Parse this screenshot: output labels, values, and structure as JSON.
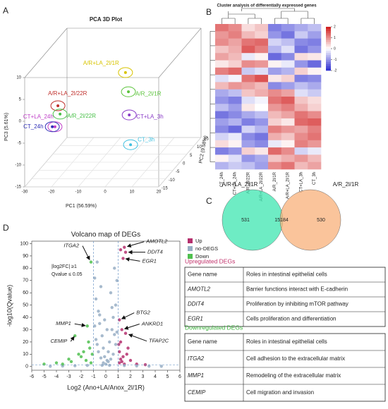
{
  "panels": [
    "A",
    "B",
    "C",
    "D"
  ],
  "chart_data": [
    {
      "type": "scatter3d",
      "title": "PCA 3D Plot",
      "xlabel": "PC1 (56.59%)",
      "ylabel": "PC2 (9.58%)",
      "zlabel": "PC3 (5.61%)",
      "xlim": [
        -30,
        20
      ],
      "ylim": [
        -15,
        15
      ],
      "zlim": [
        -15,
        10
      ],
      "xticks": [
        -30,
        -20,
        -10,
        0,
        10,
        20
      ],
      "yticks": [
        -15,
        -10,
        -5,
        0,
        5,
        10,
        15
      ],
      "zticks": [
        -15,
        -10,
        -5,
        0,
        5,
        10
      ],
      "series": [
        {
          "name": "A/R+LA_2l/1R",
          "color": "#d8c400",
          "x": [
            -0.3
          ],
          "y": [
            0
          ],
          "z": [
            5.5
          ]
        },
        {
          "name": "A/R_2l/1R",
          "color": "#5cc43c",
          "x": [
            0.8
          ],
          "y": [
            0
          ],
          "z": [
            1.1
          ]
        },
        {
          "name": "A/R+LA_2l/22R",
          "color": "#c0302c",
          "x": [
            -25.5
          ],
          "y": [
            0
          ],
          "z": [
            -2.1
          ]
        },
        {
          "name": "A/R_2l/22R",
          "color": "#48c048",
          "x": [
            -24.7
          ],
          "y": [
            0
          ],
          "z": [
            -4
          ]
        },
        {
          "name": "CT+LA_3h",
          "color": "#8a3cc8",
          "x": [
            1.1
          ],
          "y": [
            0
          ],
          "z": [
            -4.2
          ]
        },
        {
          "name": "CT+LA_24h",
          "color": "#c040c8",
          "x": [
            -26.6
          ],
          "y": [
            0
          ],
          "z": [
            -6.9
          ]
        },
        {
          "name": "CT_24h",
          "color": "#3030b8",
          "x": [
            -27.6
          ],
          "y": [
            0
          ],
          "z": [
            -6.9
          ]
        },
        {
          "name": "CT_3h",
          "color": "#40c0e0",
          "x": [
            1.6
          ],
          "y": [
            0
          ],
          "z": [
            -11
          ]
        }
      ]
    },
    {
      "type": "heatmap",
      "title": "Cluster analysis of differentially expressed genes",
      "x": [
        "CT_24h",
        "CT+LA_24h",
        "A/R_2l/22R",
        "A/R+LA_2l/22R",
        "A/R_2l/1R",
        "A/R+LA_2l/1R",
        "CT+LA_3h",
        "CT_3h"
      ],
      "zlim": [
        -2,
        2
      ],
      "zticks": [
        2,
        1,
        0,
        -1,
        -2
      ],
      "colors": [
        "#2a2ad0",
        "#ffffff",
        "#d01818"
      ],
      "values": [
        [
          1.2,
          1.0,
          0.3,
          0.5,
          -1.2,
          -1.0,
          -0.8,
          -0.6
        ],
        [
          0.9,
          1.1,
          0.6,
          0.4,
          -1.0,
          -1.3,
          -0.5,
          -0.9
        ],
        [
          1.0,
          0.8,
          1.2,
          1.3,
          -0.4,
          -0.6,
          -1.1,
          -1.2
        ],
        [
          0.5,
          0.7,
          1.4,
          1.1,
          -0.7,
          -0.3,
          -1.3,
          -1.0
        ],
        [
          0.8,
          0.6,
          -0.2,
          0.1,
          -1.4,
          -1.1,
          0.3,
          0.2
        ],
        [
          0.2,
          0.4,
          1.0,
          0.9,
          0.1,
          -0.2,
          -1.0,
          -1.4
        ],
        [
          1.1,
          1.3,
          -0.5,
          -0.3,
          -0.9,
          -0.7,
          0.4,
          0.1
        ],
        [
          -0.3,
          -0.1,
          1.2,
          1.5,
          0.2,
          0.4,
          -1.2,
          -1.1
        ],
        [
          0.6,
          0.9,
          0.8,
          0.6,
          -1.1,
          -0.9,
          -0.6,
          -0.8
        ],
        [
          -0.8,
          -0.6,
          0.5,
          0.7,
          1.0,
          0.8,
          -0.3,
          -0.5
        ],
        [
          -1.0,
          -1.2,
          -0.3,
          -0.1,
          1.2,
          1.4,
          0.5,
          0.3
        ],
        [
          -0.6,
          -0.9,
          0.2,
          0.0,
          0.9,
          1.1,
          0.7,
          0.4
        ],
        [
          -1.3,
          -1.1,
          -0.8,
          -0.6,
          0.6,
          0.8,
          1.2,
          1.0
        ],
        [
          -0.9,
          -0.7,
          -1.2,
          -1.0,
          0.4,
          0.2,
          1.3,
          1.4
        ],
        [
          -1.1,
          -1.4,
          -0.4,
          -0.7,
          1.1,
          0.9,
          0.8,
          1.1
        ],
        [
          -0.4,
          -0.2,
          -1.1,
          -1.3,
          0.7,
          0.5,
          1.0,
          1.2
        ],
        [
          0.3,
          0.1,
          -0.9,
          -1.1,
          -0.2,
          0.1,
          1.1,
          0.9
        ],
        [
          -1.2,
          -1.0,
          0.4,
          0.2,
          1.3,
          1.0,
          -0.4,
          -0.2
        ],
        [
          0.1,
          -0.3,
          -1.0,
          -0.8,
          0.5,
          0.7,
          0.9,
          0.6
        ],
        [
          -0.7,
          -0.5,
          -0.6,
          -0.9,
          1.0,
          1.2,
          0.6,
          0.8
        ]
      ]
    },
    {
      "type": "venn",
      "sets": [
        {
          "name": "A/R+LA_2l/1R",
          "color": "#3ee6b0"
        },
        {
          "name": "A/R_2l/1R",
          "color": "#f8b07a"
        }
      ],
      "values": [
        531,
        15184,
        530
      ]
    },
    {
      "type": "scatter",
      "title": "Volcano map of DEGs",
      "xlabel": "Log2 (Ano+LA/Anox_2l/1R)",
      "ylabel": "-log10(Qvalue)",
      "xlim": [
        -6,
        6
      ],
      "ylim": [
        -3,
        102
      ],
      "xticks": [
        -6,
        -5,
        -4,
        -3,
        -2,
        -1,
        0,
        1,
        2,
        3,
        4,
        5,
        6
      ],
      "yticks": [
        0,
        10,
        20,
        30,
        40,
        50,
        60,
        70,
        80,
        90,
        100
      ],
      "vlines": [
        -1,
        1
      ],
      "hline": 1.3,
      "annotations": [
        "|log2FC| ≥1",
        "Qvalue ≤ 0.05"
      ],
      "series": [
        {
          "name": "Up",
          "color": "#b5306e",
          "x": [
            1.5,
            1.6,
            1.4,
            1.2,
            1.1,
            1.3,
            1.6,
            1.2,
            1.8,
            1.1,
            1.4,
            2.0,
            1.3,
            1.1,
            2.5,
            1.7,
            1.2,
            1.05,
            1.5,
            3.2
          ],
          "values": [
            97,
            93,
            88,
            95,
            38,
            30,
            27,
            20,
            15,
            12,
            8,
            5,
            4,
            3,
            2,
            10,
            6,
            18,
            2,
            1.5
          ]
        },
        {
          "name": "no-DEGS",
          "color": "#98aec4",
          "x": [
            0,
            0.1,
            -0.1,
            0.2,
            -0.2,
            0.3,
            -0.3,
            0.5,
            -0.5,
            0.6,
            -0.6,
            0.8,
            -0.8,
            0.4,
            -0.4,
            0.9,
            -0.9,
            0.7,
            -0.7,
            0.5,
            -0.5,
            0.2,
            -0.2,
            0.4,
            -0.4,
            0.6,
            -0.6,
            0.8,
            -0.8,
            0.9,
            -0.9,
            1.5,
            -1.5,
            2.5,
            -2.5,
            3.5,
            -3.5,
            4.5,
            -4.5,
            0.3,
            -0.3,
            0.1,
            -0.1,
            0.7,
            -0.7
          ],
          "values": [
            2,
            5,
            8,
            12,
            15,
            20,
            25,
            30,
            35,
            40,
            45,
            50,
            55,
            60,
            65,
            70,
            72,
            80,
            85,
            48,
            42,
            4,
            3,
            6,
            7,
            10,
            12,
            18,
            22,
            28,
            33,
            0.8,
            0.9,
            0.5,
            0.6,
            0.3,
            0.4,
            0.2,
            0.2,
            1,
            1,
            30,
            38,
            26,
            18
          ]
        },
        {
          "name": "Down",
          "color": "#4fc04f",
          "x": [
            -1.2,
            -1.5,
            -2.5,
            -1.3,
            -1.8,
            -2.0,
            -1.1,
            -3.0,
            -1.6,
            -4.0,
            -5.0,
            -2.8,
            -1.4,
            -1.2,
            -3.5,
            -2.2
          ],
          "values": [
            85,
            33,
            25,
            15,
            12,
            8,
            10,
            6,
            5,
            3,
            2,
            4,
            20,
            3,
            2,
            10
          ]
        }
      ],
      "labels": [
        {
          "text": "AMOTL2",
          "x": 1.5,
          "y": 97
        },
        {
          "text": "DDIT4",
          "x": 1.6,
          "y": 93
        },
        {
          "text": "EGR1",
          "x": 1.4,
          "y": 88
        },
        {
          "text": "ITGA2",
          "x": -1.2,
          "y": 85
        },
        {
          "text": "BTG2",
          "x": 1.1,
          "y": 38
        },
        {
          "text": "ANKRD1",
          "x": 1.3,
          "y": 30
        },
        {
          "text": "TFAP2C",
          "x": 1.6,
          "y": 27
        },
        {
          "text": "MMP1",
          "x": -1.5,
          "y": 33
        },
        {
          "text": "CEMIP",
          "x": -2.5,
          "y": 25
        }
      ]
    }
  ],
  "tables": [
    {
      "title": "Upregulated DEGs",
      "color": "#c0306a",
      "header": [
        "Gene name",
        "Roles in intestinal epithelial cells"
      ],
      "rows": [
        [
          "AMOTL2",
          "Barrier functions interact with E-cadherin"
        ],
        [
          "DDIT4",
          "Proliferation by inhibiting mTOR pathway"
        ],
        [
          "EGR1",
          "Cells proliferation and differentiation"
        ]
      ]
    },
    {
      "title": "Downregulated DEGs",
      "color": "#3cb43c",
      "header": [
        "Gene name",
        "Roles in intestinal epithelial cells"
      ],
      "rows": [
        [
          "ITGA2",
          "Cell adhesion to the extracellular matrix"
        ],
        [
          "MMP1",
          "Remodeling of the extracellular matrix"
        ],
        [
          "CEMIP",
          "Cell migration and invasion"
        ]
      ]
    }
  ]
}
